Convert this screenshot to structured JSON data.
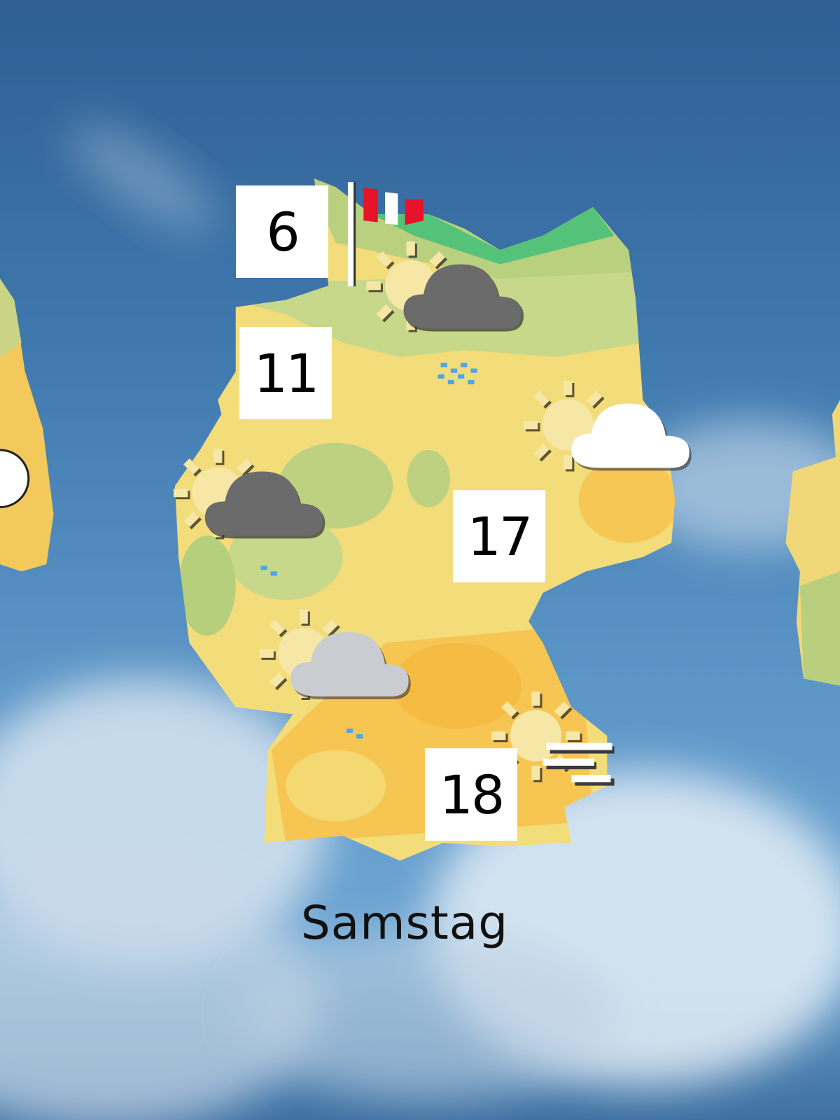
{
  "day_label": "Samstag",
  "colors": {
    "sky": "#3f78ad",
    "map_yellow": "#f3dc7a",
    "map_orange": "#f7c24c",
    "map_green": "#b7cf7c",
    "flag_red": "#e8132a"
  },
  "stations": [
    {
      "temp": "6",
      "icon": "wind-flag-icon"
    },
    {
      "temp": "11",
      "icon": "sun-dark-cloud-rain-icon"
    },
    {
      "temp": "17",
      "icon": "sun-white-cloud-icon"
    },
    {
      "temp": "18",
      "icon": "sun-wind-icon"
    }
  ],
  "icons": [
    "sun-dark-cloud-rain-icon",
    "sun-white-cloud-icon",
    "sun-dark-cloud-rain-icon",
    "sun-grey-cloud-rain-icon",
    "sun-wind-icon",
    "wind-flag-icon"
  ]
}
